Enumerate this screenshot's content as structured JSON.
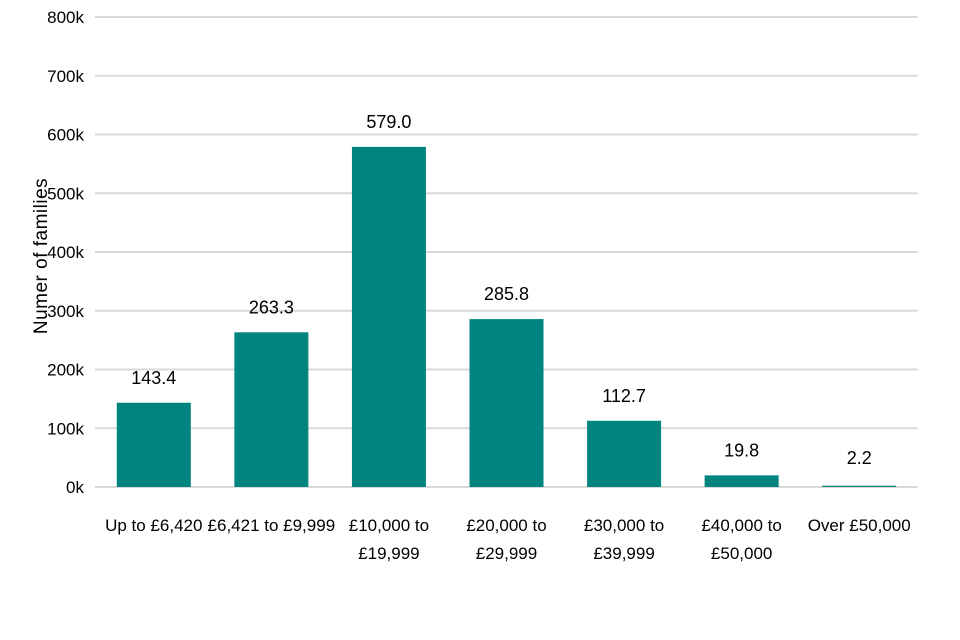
{
  "chart_data": {
    "type": "bar",
    "ylabel": "Numer of families",
    "ylim": [
      0,
      800
    ],
    "ytick_values": [
      0,
      100,
      200,
      300,
      400,
      500,
      600,
      700,
      800
    ],
    "ytick_labels": [
      "0k",
      "100k",
      "200k",
      "300k",
      "400k",
      "500k",
      "600k",
      "700k",
      "800k"
    ],
    "categories": [
      [
        "Up to £6,420"
      ],
      [
        "£6,421 to £9,999"
      ],
      [
        "£10,000 to",
        "£19,999"
      ],
      [
        "£20,000 to",
        "£29,999"
      ],
      [
        "£30,000 to",
        "£39,999"
      ],
      [
        "£40,000 to",
        "£50,000"
      ],
      [
        "Over £50,000"
      ]
    ],
    "values": [
      143.4,
      263.3,
      579.0,
      285.8,
      112.7,
      19.8,
      2.2
    ],
    "data_labels": [
      "143.4",
      "263.3",
      "579.0",
      "285.8",
      "112.7",
      "19.8",
      "2.2"
    ],
    "bar_color": "#00847f",
    "grid": true
  }
}
